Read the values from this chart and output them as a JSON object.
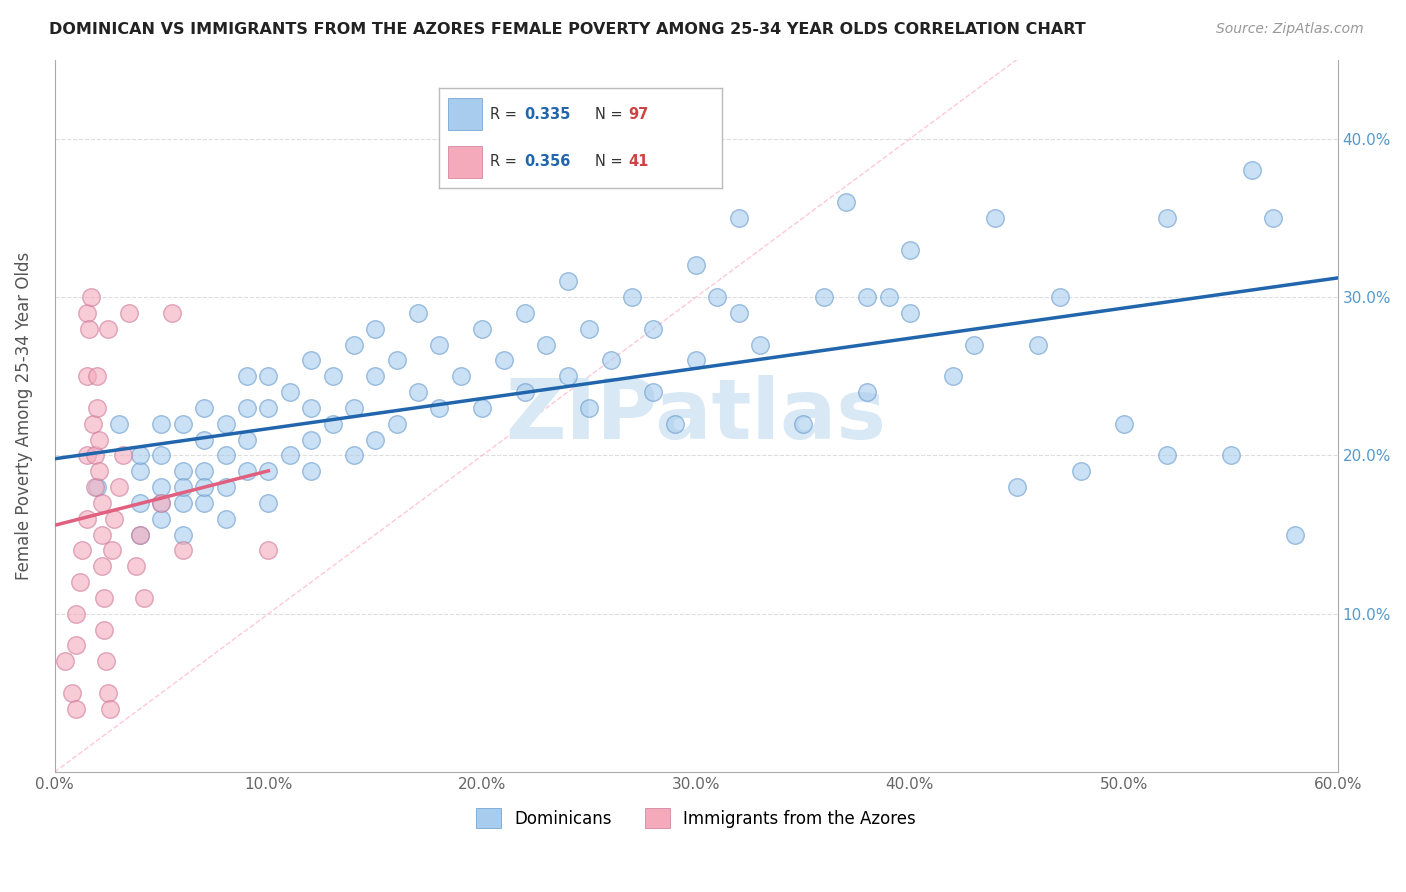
{
  "title": "DOMINICAN VS IMMIGRANTS FROM THE AZORES FEMALE POVERTY AMONG 25-34 YEAR OLDS CORRELATION CHART",
  "source": "Source: ZipAtlas.com",
  "ylabel": "Female Poverty Among 25-34 Year Olds",
  "xlim": [
    0.0,
    0.6
  ],
  "ylim": [
    0.0,
    0.45
  ],
  "xticks": [
    0.0,
    0.1,
    0.2,
    0.3,
    0.4,
    0.5,
    0.6
  ],
  "xticklabels": [
    "0.0%",
    "10.0%",
    "20.0%",
    "30.0%",
    "40.0%",
    "50.0%",
    "60.0%"
  ],
  "yticks": [
    0.0,
    0.1,
    0.2,
    0.3,
    0.4
  ],
  "yticklabels_left": [
    "",
    "",
    "",
    "",
    ""
  ],
  "yticklabels_right": [
    "",
    "10.0%",
    "20.0%",
    "30.0%",
    "40.0%"
  ],
  "blue_color": "#A8CCEE",
  "pink_color": "#F4AABB",
  "blue_line_color": "#2166AC",
  "pink_line_color": "#E06080",
  "diagonal_color": "#CCCCCC",
  "watermark_color": "#D8E8F5",
  "R_blue": 0.335,
  "N_blue": 97,
  "R_pink": 0.356,
  "N_pink": 41,
  "legend1": "Dominicans",
  "legend2": "Immigrants from the Azores",
  "blue_scatter": [
    [
      0.02,
      0.18
    ],
    [
      0.03,
      0.22
    ],
    [
      0.04,
      0.19
    ],
    [
      0.04,
      0.17
    ],
    [
      0.04,
      0.15
    ],
    [
      0.04,
      0.2
    ],
    [
      0.05,
      0.17
    ],
    [
      0.05,
      0.16
    ],
    [
      0.05,
      0.2
    ],
    [
      0.05,
      0.22
    ],
    [
      0.05,
      0.18
    ],
    [
      0.06,
      0.19
    ],
    [
      0.06,
      0.17
    ],
    [
      0.06,
      0.22
    ],
    [
      0.06,
      0.18
    ],
    [
      0.06,
      0.15
    ],
    [
      0.07,
      0.19
    ],
    [
      0.07,
      0.21
    ],
    [
      0.07,
      0.17
    ],
    [
      0.07,
      0.23
    ],
    [
      0.07,
      0.18
    ],
    [
      0.08,
      0.2
    ],
    [
      0.08,
      0.22
    ],
    [
      0.08,
      0.18
    ],
    [
      0.08,
      0.16
    ],
    [
      0.09,
      0.21
    ],
    [
      0.09,
      0.23
    ],
    [
      0.09,
      0.19
    ],
    [
      0.09,
      0.25
    ],
    [
      0.1,
      0.19
    ],
    [
      0.1,
      0.17
    ],
    [
      0.1,
      0.23
    ],
    [
      0.1,
      0.25
    ],
    [
      0.11,
      0.2
    ],
    [
      0.11,
      0.24
    ],
    [
      0.12,
      0.23
    ],
    [
      0.12,
      0.26
    ],
    [
      0.12,
      0.21
    ],
    [
      0.12,
      0.19
    ],
    [
      0.13,
      0.25
    ],
    [
      0.13,
      0.22
    ],
    [
      0.14,
      0.23
    ],
    [
      0.14,
      0.27
    ],
    [
      0.14,
      0.2
    ],
    [
      0.15,
      0.25
    ],
    [
      0.15,
      0.21
    ],
    [
      0.15,
      0.28
    ],
    [
      0.16,
      0.26
    ],
    [
      0.16,
      0.22
    ],
    [
      0.17,
      0.29
    ],
    [
      0.17,
      0.24
    ],
    [
      0.18,
      0.27
    ],
    [
      0.18,
      0.23
    ],
    [
      0.19,
      0.25
    ],
    [
      0.2,
      0.28
    ],
    [
      0.2,
      0.23
    ],
    [
      0.21,
      0.26
    ],
    [
      0.22,
      0.29
    ],
    [
      0.22,
      0.24
    ],
    [
      0.23,
      0.27
    ],
    [
      0.24,
      0.25
    ],
    [
      0.24,
      0.31
    ],
    [
      0.25,
      0.28
    ],
    [
      0.25,
      0.23
    ],
    [
      0.26,
      0.26
    ],
    [
      0.27,
      0.3
    ],
    [
      0.28,
      0.28
    ],
    [
      0.28,
      0.24
    ],
    [
      0.29,
      0.22
    ],
    [
      0.3,
      0.26
    ],
    [
      0.3,
      0.32
    ],
    [
      0.31,
      0.3
    ],
    [
      0.32,
      0.29
    ],
    [
      0.32,
      0.35
    ],
    [
      0.33,
      0.27
    ],
    [
      0.35,
      0.22
    ],
    [
      0.36,
      0.3
    ],
    [
      0.37,
      0.36
    ],
    [
      0.38,
      0.3
    ],
    [
      0.38,
      0.24
    ],
    [
      0.39,
      0.3
    ],
    [
      0.4,
      0.29
    ],
    [
      0.4,
      0.33
    ],
    [
      0.42,
      0.25
    ],
    [
      0.43,
      0.27
    ],
    [
      0.44,
      0.35
    ],
    [
      0.45,
      0.18
    ],
    [
      0.46,
      0.27
    ],
    [
      0.47,
      0.3
    ],
    [
      0.48,
      0.19
    ],
    [
      0.5,
      0.22
    ],
    [
      0.52,
      0.35
    ],
    [
      0.52,
      0.2
    ],
    [
      0.55,
      0.2
    ],
    [
      0.56,
      0.38
    ],
    [
      0.57,
      0.35
    ],
    [
      0.58,
      0.15
    ]
  ],
  "pink_scatter": [
    [
      0.005,
      0.07
    ],
    [
      0.008,
      0.05
    ],
    [
      0.01,
      0.08
    ],
    [
      0.01,
      0.1
    ],
    [
      0.012,
      0.12
    ],
    [
      0.013,
      0.14
    ],
    [
      0.015,
      0.16
    ],
    [
      0.015,
      0.2
    ],
    [
      0.015,
      0.25
    ],
    [
      0.015,
      0.29
    ],
    [
      0.016,
      0.28
    ],
    [
      0.017,
      0.3
    ],
    [
      0.018,
      0.22
    ],
    [
      0.019,
      0.2
    ],
    [
      0.019,
      0.18
    ],
    [
      0.02,
      0.25
    ],
    [
      0.02,
      0.23
    ],
    [
      0.021,
      0.21
    ],
    [
      0.021,
      0.19
    ],
    [
      0.022,
      0.17
    ],
    [
      0.022,
      0.15
    ],
    [
      0.022,
      0.13
    ],
    [
      0.023,
      0.11
    ],
    [
      0.023,
      0.09
    ],
    [
      0.024,
      0.07
    ],
    [
      0.025,
      0.28
    ],
    [
      0.025,
      0.05
    ],
    [
      0.026,
      0.04
    ],
    [
      0.027,
      0.14
    ],
    [
      0.028,
      0.16
    ],
    [
      0.03,
      0.18
    ],
    [
      0.032,
      0.2
    ],
    [
      0.035,
      0.29
    ],
    [
      0.038,
      0.13
    ],
    [
      0.04,
      0.15
    ],
    [
      0.042,
      0.11
    ],
    [
      0.05,
      0.17
    ],
    [
      0.055,
      0.29
    ],
    [
      0.06,
      0.14
    ],
    [
      0.1,
      0.14
    ],
    [
      0.01,
      0.04
    ]
  ]
}
